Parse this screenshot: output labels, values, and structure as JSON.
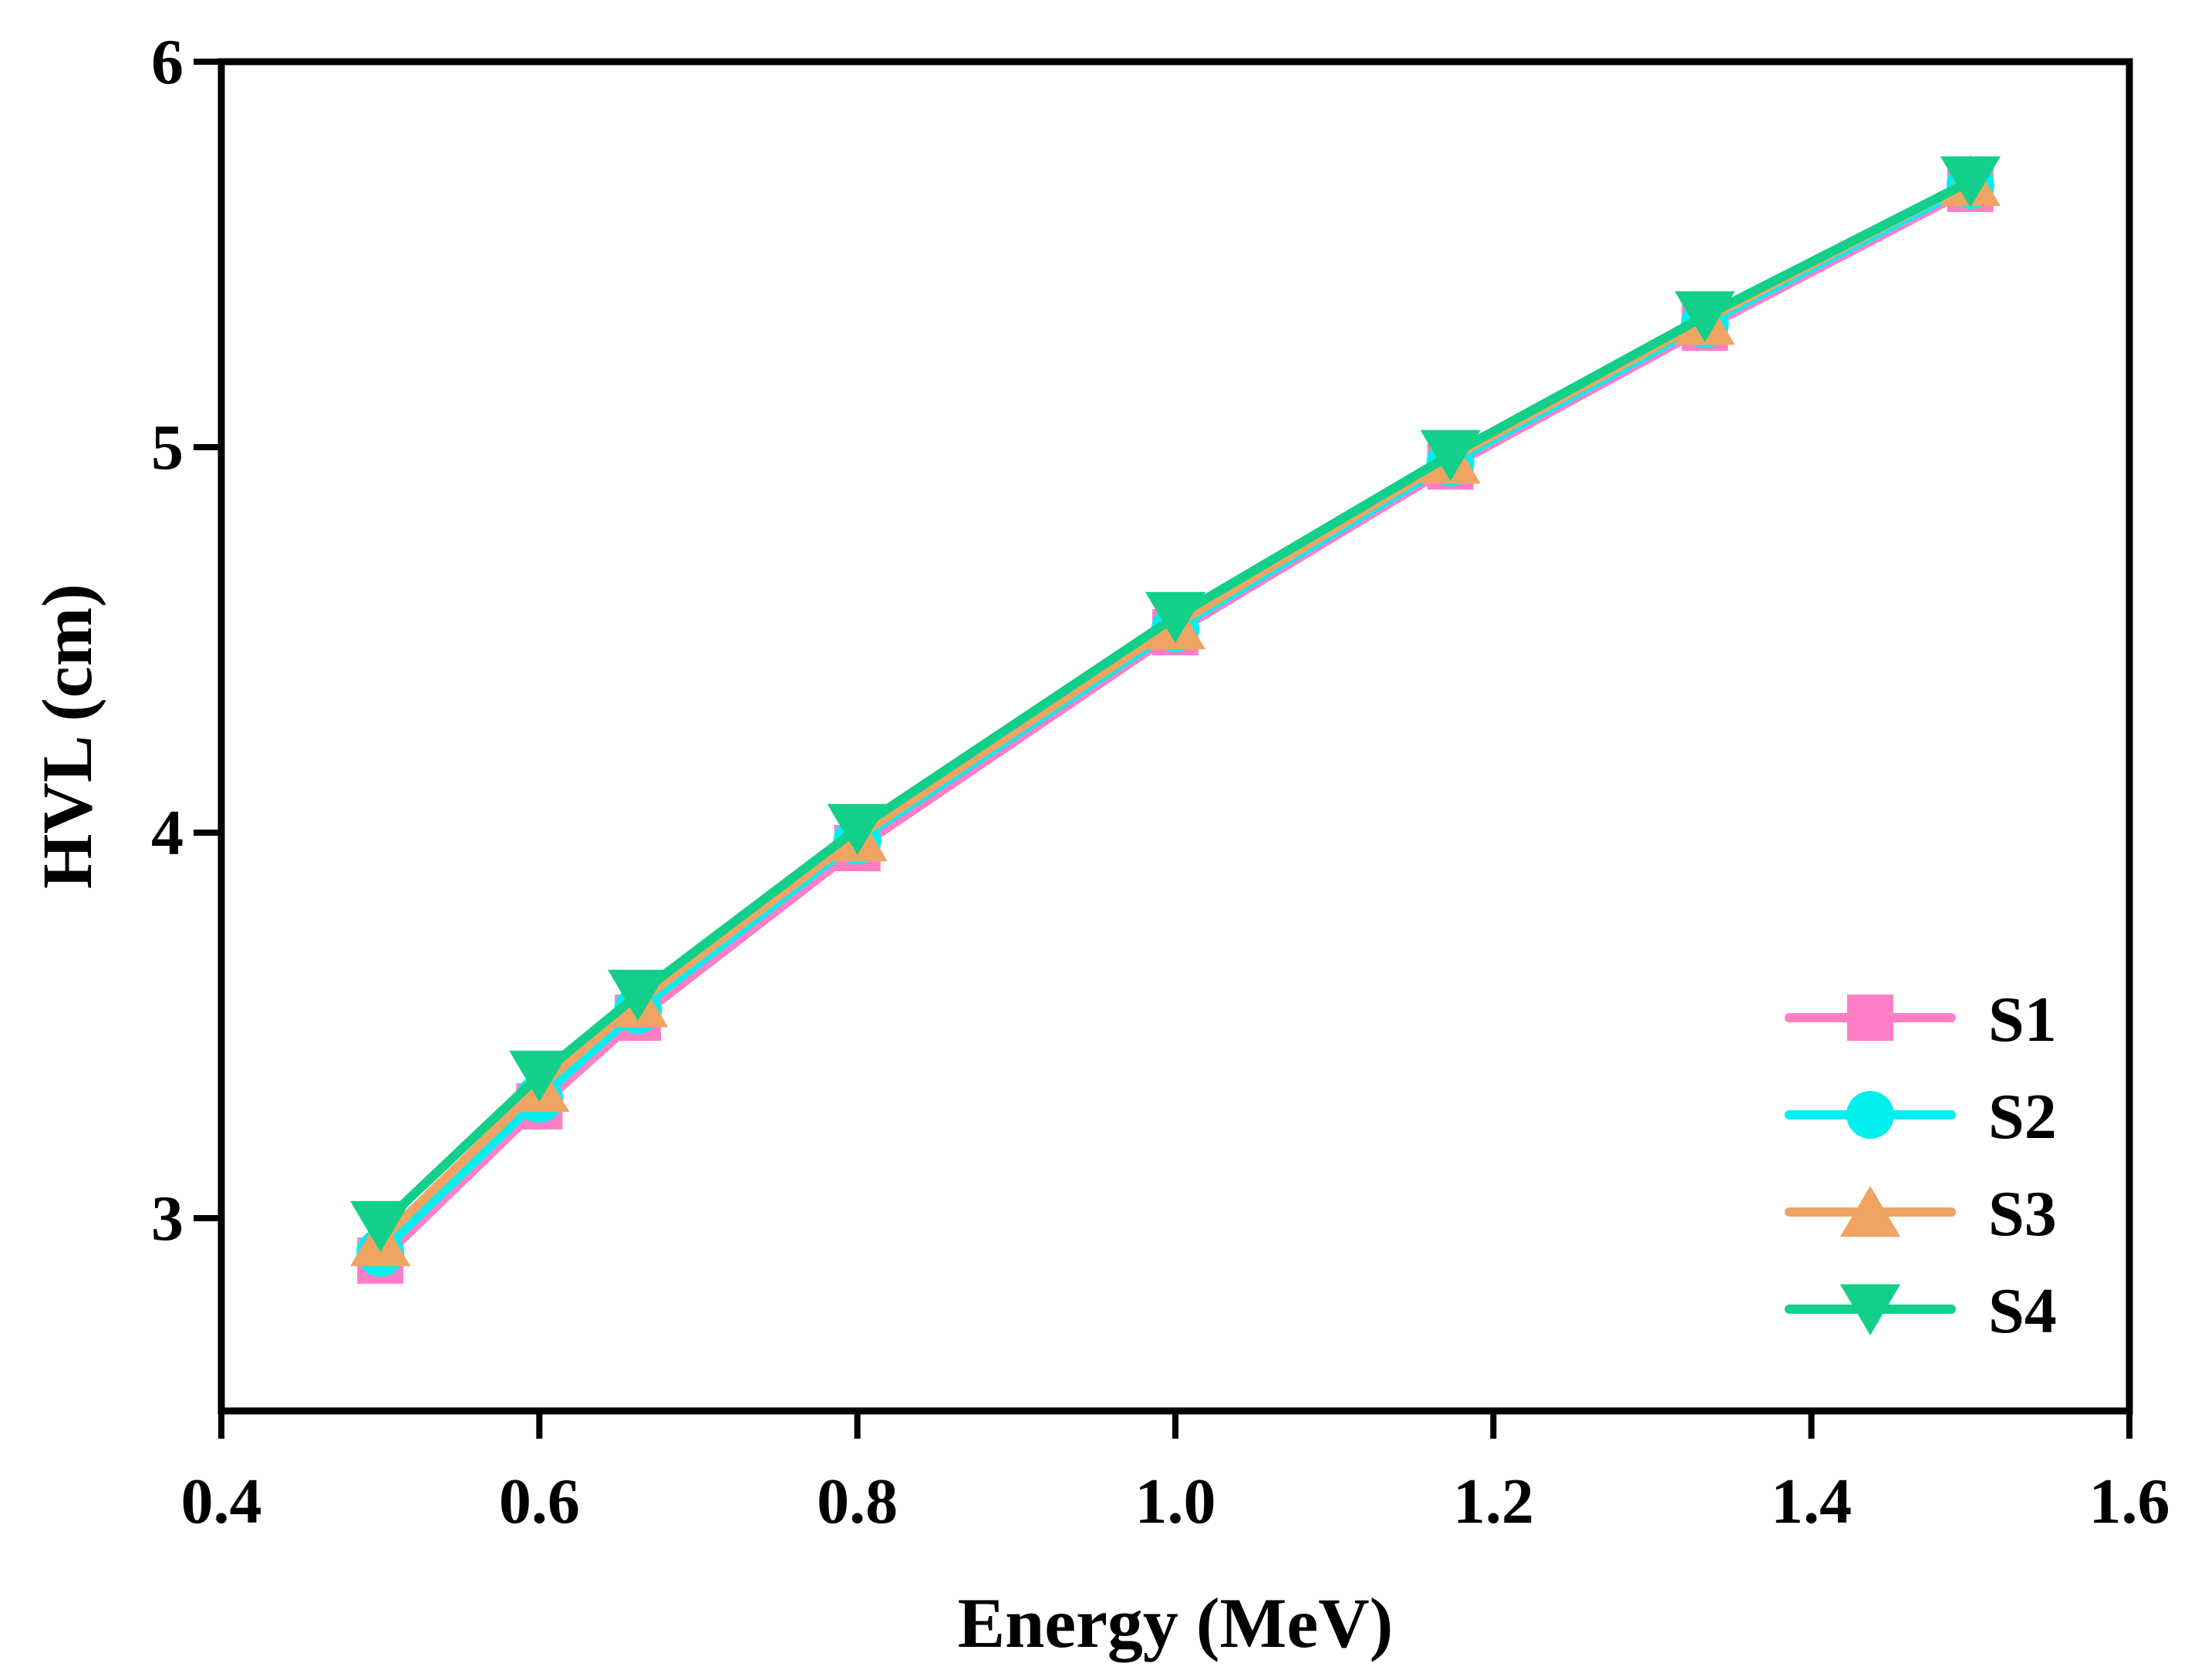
{
  "chart_data": {
    "type": "line",
    "title": "",
    "xlabel": "Energy (MeV)",
    "ylabel": "HVL (cm)",
    "xlim": [
      0.4,
      1.6
    ],
    "ylim": [
      2.5,
      6
    ],
    "xticks": [
      "0.4",
      "0.6",
      "0.8",
      "1.0",
      "1.2",
      "1.4",
      "1.6"
    ],
    "xtick_values": [
      0.4,
      0.6,
      0.8,
      1.0,
      1.2,
      1.4,
      1.6
    ],
    "yticks": [
      "3",
      "4",
      "5",
      "6"
    ],
    "ytick_values": [
      3,
      4,
      5,
      6
    ],
    "grid": false,
    "legend_position": "bottom-right",
    "x": [
      0.5,
      0.6,
      0.662,
      0.8,
      1.0,
      1.173,
      1.333,
      1.5
    ],
    "series": [
      {
        "name": "S1",
        "color": "#ff7fc6",
        "marker": "square",
        "values": [
          2.89,
          3.29,
          3.52,
          3.96,
          4.52,
          4.95,
          5.31,
          5.67
        ]
      },
      {
        "name": "S2",
        "color": "#00f0f0",
        "marker": "circle",
        "values": [
          2.91,
          3.31,
          3.54,
          3.98,
          4.53,
          4.96,
          5.32,
          5.68
        ]
      },
      {
        "name": "S3",
        "color": "#f0a464",
        "marker": "triangle-up",
        "values": [
          2.94,
          3.34,
          3.56,
          3.99,
          4.54,
          4.97,
          5.33,
          5.69
        ]
      },
      {
        "name": "S4",
        "color": "#12cf8a",
        "marker": "triangle-down",
        "values": [
          2.98,
          3.37,
          3.58,
          4.01,
          4.56,
          4.98,
          5.34,
          5.69
        ]
      }
    ]
  }
}
